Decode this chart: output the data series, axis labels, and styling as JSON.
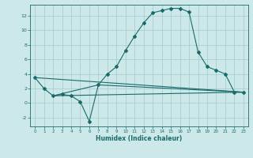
{
  "xlabel": "Humidex (Indice chaleur)",
  "bg_color": "#cce8e8",
  "grid_color": "#aacfcf",
  "line_color": "#1a6b6b",
  "xlim": [
    -0.5,
    23.5
  ],
  "ylim": [
    -3.2,
    13.5
  ],
  "yticks": [
    -2,
    0,
    2,
    4,
    6,
    8,
    10,
    12
  ],
  "xticks": [
    0,
    1,
    2,
    3,
    4,
    5,
    6,
    7,
    8,
    9,
    10,
    11,
    12,
    13,
    14,
    15,
    16,
    17,
    18,
    19,
    20,
    21,
    22,
    23
  ],
  "line1_x": [
    0,
    1,
    2,
    3,
    4,
    5,
    6,
    7,
    8,
    9,
    10,
    11,
    12,
    13,
    14,
    15,
    16,
    17,
    18,
    19,
    20,
    21,
    22,
    23
  ],
  "line1_y": [
    3.5,
    2.0,
    1.0,
    1.2,
    1.0,
    0.2,
    -2.5,
    2.5,
    4.0,
    5.0,
    7.2,
    9.2,
    11.0,
    12.4,
    12.7,
    13.0,
    13.0,
    12.5,
    7.0,
    5.0,
    4.5,
    4.0,
    1.5,
    1.5
  ],
  "line2_x": [
    0,
    23
  ],
  "line2_y": [
    3.5,
    1.5
  ],
  "line3_x": [
    2,
    23
  ],
  "line3_y": [
    1.0,
    1.5
  ],
  "line4_x": [
    2,
    7,
    23
  ],
  "line4_y": [
    1.0,
    2.5,
    1.5
  ]
}
